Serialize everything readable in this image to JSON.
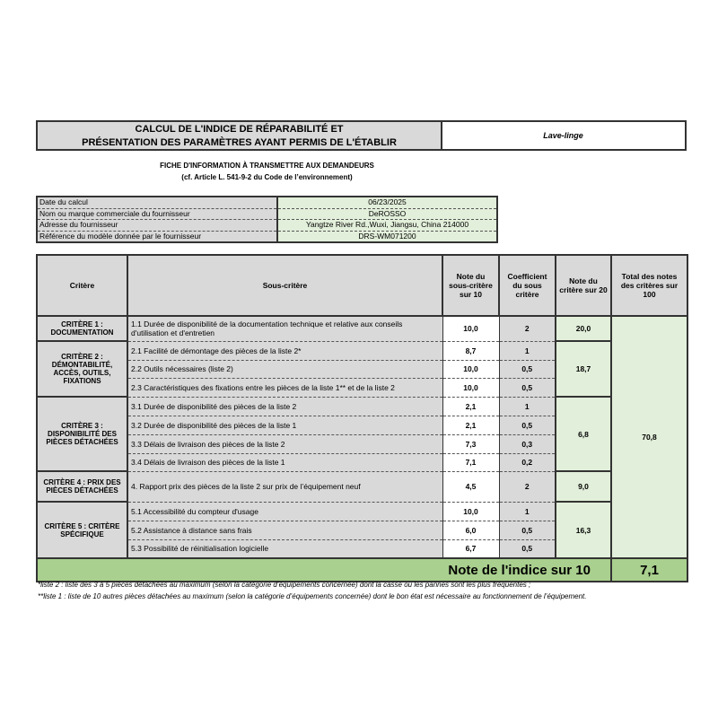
{
  "header": {
    "title_line1": "CALCUL DE L'INDICE DE RÉPARABILITÉ ET",
    "title_line2": "PRÉSENTATION DES PARAMÈTRES AYANT PERMIS DE L'ÉTABLIR",
    "category": "Lave-linge"
  },
  "subtitle": {
    "line1": "FICHE D'INFORMATION À TRANSMETTRE AUX DEMANDEURS",
    "line2": "(cf. Article L. 541-9-2 du Code de l’environnement)"
  },
  "info": [
    {
      "label": "Date du calcul",
      "value": "06/23/2025"
    },
    {
      "label": "Nom ou marque commerciale du fournisseur",
      "value": "DeROSSO"
    },
    {
      "label": "Adresse du fournisseur",
      "value": "Yangtze River Rd.,Wuxi, Jiangsu, China 214000"
    },
    {
      "label": "Référence du modèle donnée par le fournisseur",
      "value": "DRS-WM071200"
    }
  ],
  "columns": [
    "Critère",
    "Sous-critère",
    "Note du sous-critère sur 10",
    "Coefficient du sous critère",
    "Note du critère sur 20",
    "Total des notes des critères sur 100"
  ],
  "criteria": [
    {
      "name": "CRITÈRE 1 : DOCUMENTATION",
      "score20": "20,0",
      "subs": [
        {
          "label": "1.1 Durée de disponibilité de la documentation technique et relative aux conseils d'utilisation et d'entretien",
          "note": "10,0",
          "coef": "2"
        }
      ]
    },
    {
      "name": "CRITÈRE 2 : DÉMONTABILITÉ, ACCÈS, OUTILS, FIXATIONS",
      "score20": "18,7",
      "subs": [
        {
          "label": "2.1 Facilité de démontage des pièces de la liste 2*",
          "note": "8,7",
          "coef": "1"
        },
        {
          "label": "2.2 Outils nécessaires (liste 2)",
          "note": "10,0",
          "coef": "0,5"
        },
        {
          "label": "2.3 Caractéristiques des fixations entre les pièces de la liste 1** et de la liste 2",
          "note": "10,0",
          "coef": "0,5"
        }
      ]
    },
    {
      "name": "CRITÈRE 3 : DISPONIBILITÉ DES PIÈCES DÉTACHÉES",
      "score20": "6,8",
      "subs": [
        {
          "label": "3.1 Durée de disponibilité des pièces de la liste 2",
          "note": "2,1",
          "coef": "1"
        },
        {
          "label": "3.2 Durée de disponibilité des pièces de la liste 1",
          "note": "2,1",
          "coef": "0,5"
        },
        {
          "label": "3.3 Délais de livraison des pièces de la liste 2",
          "note": "7,3",
          "coef": "0,3"
        },
        {
          "label": "3.4 Délais de livraison des pièces de la liste 1",
          "note": "7,1",
          "coef": "0,2"
        }
      ]
    },
    {
      "name": "CRITÈRE 4 : PRIX DES PIÈCES DÉTACHÉES",
      "score20": "9,0",
      "subs": [
        {
          "label": "4. Rapport prix des pièces de la liste 2 sur prix de l’équipement neuf",
          "note": "4,5",
          "coef": "2"
        }
      ]
    },
    {
      "name": "CRITÈRE 5 : CRITÈRE SPÉCIFIQUE",
      "score20": "16,3",
      "subs": [
        {
          "label": "5.1 Accessibilité du compteur d'usage",
          "note": "10,0",
          "coef": "1"
        },
        {
          "label": "5.2 Assistance à distance sans frais",
          "note": "6,0",
          "coef": "0,5"
        },
        {
          "label": "5.3 Possibilité de réinitialisation logicielle",
          "note": "6,7",
          "coef": "0,5"
        }
      ]
    }
  ],
  "total100": "70,8",
  "index": {
    "label": "Note de l'indice sur 10",
    "value": "7,1"
  },
  "footnotes": [
    "*liste 2 : liste des 3 à 5 pièces détachées au maximum (selon la catégorie d’équipements concernée) dont la casse ou les pannes sont les plus fréquentes ;",
    "**liste 1 : liste de 10 autres pièces détachées au maximum (selon la catégorie d’équipements concernée) dont le bon état est nécessaire au fonctionnement de l’équipement."
  ],
  "colors": {
    "gray": "#d9d9d9",
    "light_green": "#e2efda",
    "green": "#a9d08e"
  }
}
